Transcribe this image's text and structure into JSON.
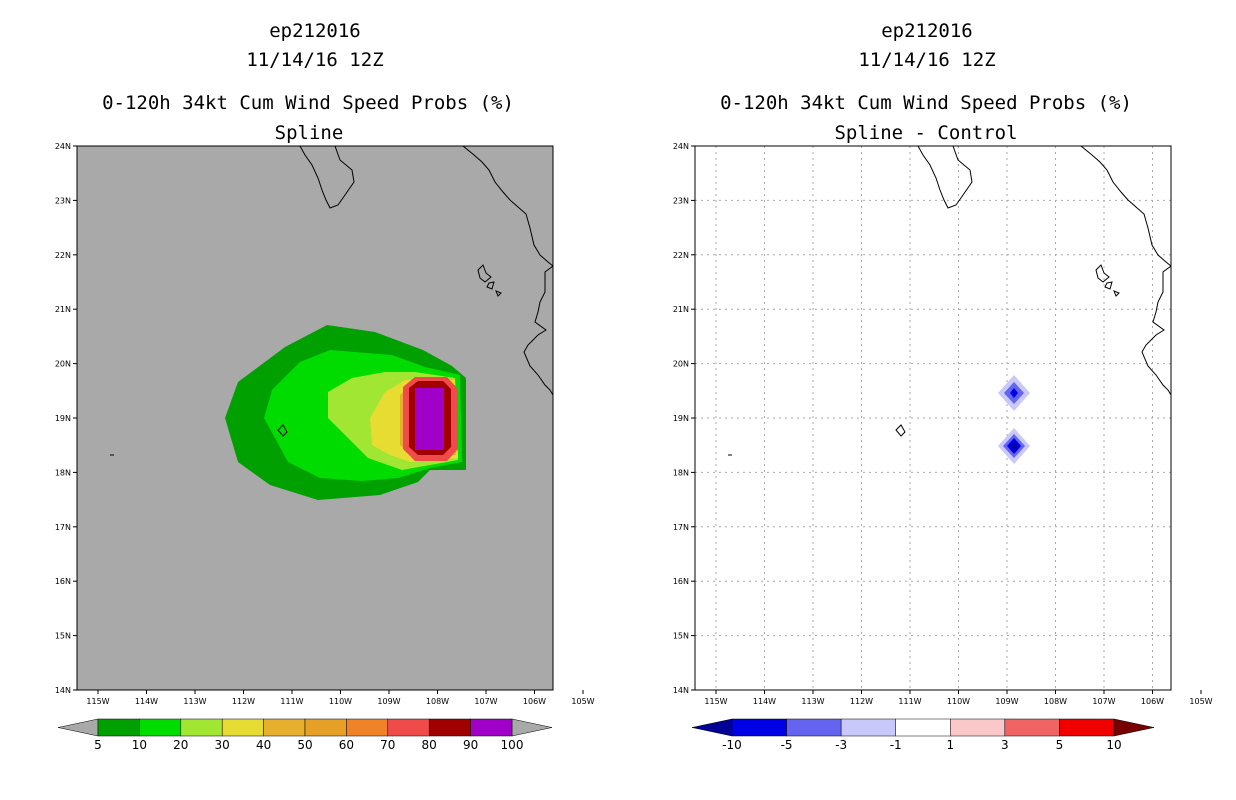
{
  "panels": [
    {
      "id": "left",
      "title_line1": "ep212016",
      "title_line2": "11/14/16 12Z",
      "title_line3": "0-120h 34kt Cum Wind Speed Probs (%)",
      "title_line4": "Spline",
      "background": "#a9a9a9",
      "grid": false
    },
    {
      "id": "right",
      "title_line1": "ep212016",
      "title_line2": "11/14/16 12Z",
      "title_line3": "0-120h 34kt Cum Wind Speed Probs (%)",
      "title_line4": "Spline - Control",
      "background": "#ffffff",
      "grid": true
    }
  ],
  "axes": {
    "lon_labels": [
      "115W",
      "114W",
      "113W",
      "112W",
      "111W",
      "110W",
      "109W",
      "108W",
      "107W",
      "106W",
      "105W"
    ],
    "lat_labels": [
      "14N",
      "15N",
      "16N",
      "17N",
      "18N",
      "19N",
      "20N",
      "21N",
      "22N",
      "23N",
      "24N"
    ]
  },
  "chart_data": [
    {
      "type": "heatmap",
      "title": "0-120h 34kt Cum Wind Speed Probs (%) - Spline",
      "lon_range": [
        -115.5,
        -105
      ],
      "lat_range": [
        14,
        24
      ],
      "levels": [
        {
          "min": 5,
          "color": "#00a000",
          "region": {
            "lon": [
              -112.1,
              -107.4
            ],
            "lat": [
              17.5,
              20.7
            ]
          }
        },
        {
          "min": 10,
          "color": "#00dc00",
          "region": {
            "lon": [
              -111.2,
              -107.2
            ],
            "lat": [
              18.1,
              20.2
            ]
          }
        },
        {
          "min": 20,
          "color": "#a0e632",
          "region": {
            "lon": [
              -110.1,
              -107.1
            ],
            "lat": [
              18.5,
              19.8
            ]
          }
        },
        {
          "min": 30,
          "color": "#e6dc32",
          "region": {
            "lon": [
              -109.2,
              -107.0
            ],
            "lat": [
              18.5,
              19.6
            ]
          }
        },
        {
          "min": 40,
          "color": "#e6af2d",
          "region": {
            "lon": [
              -108.8,
              -107.0
            ],
            "lat": [
              18.6,
              19.4
            ]
          }
        },
        {
          "min": 70,
          "color": "#f04b4b",
          "region": {
            "lon": [
              -108.6,
              -107.2
            ],
            "lat": [
              18.4,
              19.7
            ]
          }
        },
        {
          "min": 80,
          "color": "#a00000",
          "region": {
            "lon": [
              -108.45,
              -107.35
            ],
            "lat": [
              18.35,
              19.65
            ]
          }
        },
        {
          "min": 90,
          "color": "#a000c8",
          "region": {
            "lon": [
              -108.3,
              -107.5
            ],
            "lat": [
              18.45,
              19.55
            ]
          }
        }
      ],
      "colorbar": {
        "labels": [
          "5",
          "10",
          "20",
          "30",
          "40",
          "50",
          "60",
          "70",
          "80",
          "90",
          "100"
        ],
        "colors": [
          "#00a000",
          "#00dc00",
          "#a0e632",
          "#e6dc32",
          "#e6af2d",
          "#e6a028",
          "#f08228",
          "#f04b4b",
          "#a00000",
          "#a000c8"
        ],
        "under_color": "#a9a9a9",
        "over_color": "#a9a9a9"
      }
    },
    {
      "type": "heatmap",
      "title": "0-120h 34kt Cum Wind Speed Probs (%) - Spline - Control",
      "lon_range": [
        -115.5,
        -105
      ],
      "lat_range": [
        14,
        24
      ],
      "features": [
        {
          "lon": -108.5,
          "lat": 19.5,
          "min_value": -5
        },
        {
          "lon": -108.5,
          "lat": 18.5,
          "min_value": -10
        }
      ],
      "colorbar": {
        "labels": [
          "-10",
          "-5",
          "-3",
          "-1",
          "1",
          "3",
          "5",
          "10"
        ],
        "colors": [
          "#0000e6",
          "#6464f0",
          "#c8c8fa",
          "#ffffff",
          "#fac8c8",
          "#f06464",
          "#f00000"
        ],
        "under_color": "#000096",
        "over_color": "#780000"
      }
    }
  ]
}
